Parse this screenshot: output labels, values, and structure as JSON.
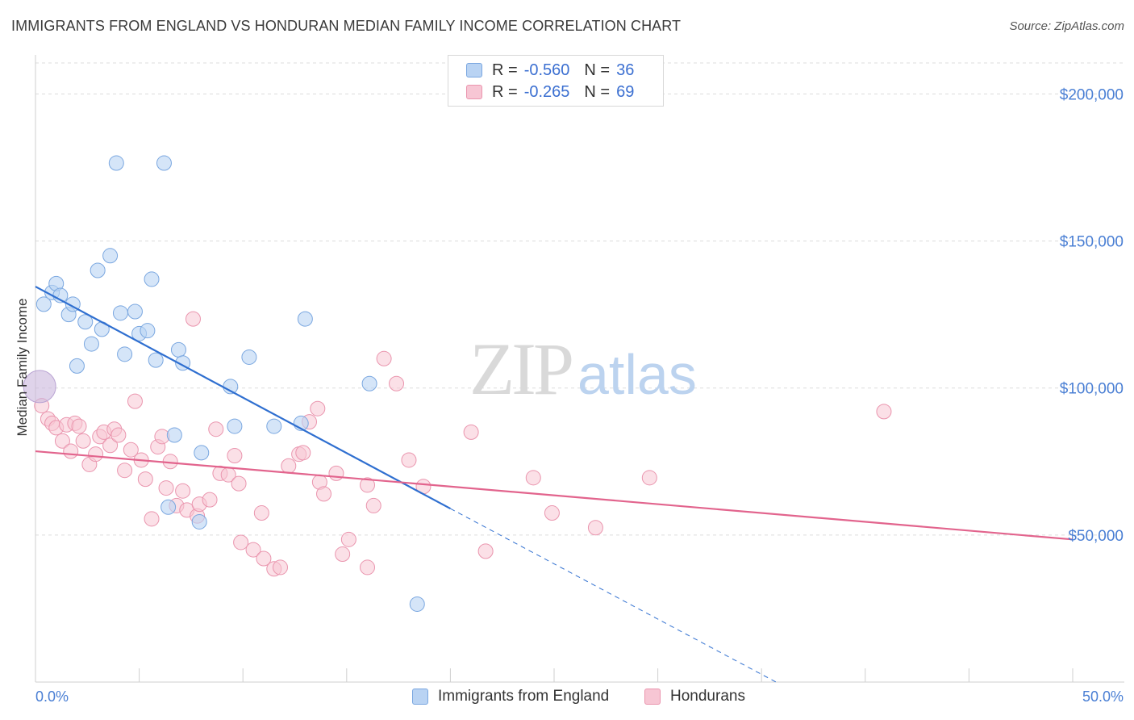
{
  "title": "IMMIGRANTS FROM ENGLAND VS HONDURAN MEDIAN FAMILY INCOME CORRELATION CHART",
  "source": "Source: ZipAtlas.com",
  "watermark": {
    "zip": "ZIP",
    "atlas": "atlas"
  },
  "legend": {
    "r_label": "R =",
    "n_label": "N =",
    "rows": [
      {
        "r": "-0.560",
        "n": "36"
      },
      {
        "r": "-0.265",
        "n": "69"
      }
    ]
  },
  "colors": {
    "blue_fill": "#b9d3f3",
    "blue_stroke": "#7aa7e0",
    "blue_line": "#2f6fd0",
    "pink_fill": "#f7c6d4",
    "pink_stroke": "#ea95ae",
    "pink_line": "#e2648d",
    "tick_text": "#4a7fd4",
    "grid": "#dcdcdc"
  },
  "chart_data": {
    "type": "scatter",
    "xlabel": "",
    "ylabel": "Median Family Income",
    "xlim": [
      0,
      50
    ],
    "ylim": [
      0,
      210000
    ],
    "x_tick_labels": [
      "0.0%",
      "50.0%"
    ],
    "y_ticks": [
      50000,
      100000,
      150000,
      200000
    ],
    "y_tick_labels": [
      "$50,000",
      "$100,000",
      "$150,000",
      "$200,000"
    ],
    "grid": true,
    "legend_position": "top-center",
    "series": [
      {
        "name": "Immigrants from England",
        "color": "#b9d3f3",
        "trend": {
          "x": [
            0,
            20
          ],
          "y": [
            134500,
            59000
          ]
        },
        "trend_dashed": {
          "x": [
            20,
            35.7
          ],
          "y": [
            59000,
            0
          ]
        },
        "points": [
          [
            0.2,
            100500
          ],
          [
            0.4,
            128500
          ],
          [
            0.8,
            132500
          ],
          [
            1.0,
            135500
          ],
          [
            1.2,
            131500
          ],
          [
            1.6,
            125000
          ],
          [
            1.8,
            128500
          ],
          [
            2.0,
            107500
          ],
          [
            2.4,
            122500
          ],
          [
            2.7,
            115000
          ],
          [
            3.0,
            140000
          ],
          [
            3.2,
            120000
          ],
          [
            3.6,
            145000
          ],
          [
            3.9,
            176500
          ],
          [
            4.1,
            125500
          ],
          [
            4.3,
            111500
          ],
          [
            4.8,
            126000
          ],
          [
            5.0,
            118500
          ],
          [
            5.4,
            119500
          ],
          [
            5.6,
            137000
          ],
          [
            5.8,
            109500
          ],
          [
            6.2,
            176500
          ],
          [
            6.4,
            59500
          ],
          [
            6.7,
            84000
          ],
          [
            6.9,
            113000
          ],
          [
            7.1,
            108500
          ],
          [
            7.9,
            54500
          ],
          [
            8.0,
            78000
          ],
          [
            9.4,
            100500
          ],
          [
            9.6,
            87000
          ],
          [
            10.3,
            110500
          ],
          [
            11.5,
            87000
          ],
          [
            12.8,
            88000
          ],
          [
            13.0,
            123500
          ],
          [
            16.1,
            101500
          ],
          [
            18.4,
            26500
          ]
        ]
      },
      {
        "name": "Hondurans",
        "color": "#f7c6d4",
        "trend": {
          "x": [
            0,
            50
          ],
          "y": [
            78500,
            48500
          ]
        },
        "points": [
          [
            0.3,
            94000
          ],
          [
            0.6,
            89500
          ],
          [
            0.8,
            88000
          ],
          [
            1.0,
            86500
          ],
          [
            1.3,
            82000
          ],
          [
            1.5,
            87500
          ],
          [
            1.7,
            78500
          ],
          [
            1.9,
            88000
          ],
          [
            2.1,
            87000
          ],
          [
            2.3,
            82000
          ],
          [
            2.6,
            74000
          ],
          [
            2.9,
            77500
          ],
          [
            3.1,
            83500
          ],
          [
            3.3,
            85000
          ],
          [
            3.6,
            80500
          ],
          [
            3.8,
            86000
          ],
          [
            4.0,
            84000
          ],
          [
            4.3,
            72000
          ],
          [
            4.6,
            79000
          ],
          [
            4.8,
            95500
          ],
          [
            5.1,
            75500
          ],
          [
            5.3,
            69000
          ],
          [
            5.6,
            55500
          ],
          [
            5.9,
            80000
          ],
          [
            6.1,
            83500
          ],
          [
            6.3,
            66000
          ],
          [
            6.5,
            75000
          ],
          [
            6.8,
            60000
          ],
          [
            7.1,
            65000
          ],
          [
            7.3,
            58500
          ],
          [
            7.6,
            123500
          ],
          [
            7.8,
            56500
          ],
          [
            7.9,
            60500
          ],
          [
            8.4,
            62000
          ],
          [
            8.7,
            86000
          ],
          [
            8.9,
            71000
          ],
          [
            9.3,
            70500
          ],
          [
            9.6,
            77000
          ],
          [
            9.8,
            67500
          ],
          [
            9.9,
            47500
          ],
          [
            10.5,
            45000
          ],
          [
            10.9,
            57500
          ],
          [
            11.0,
            42000
          ],
          [
            11.5,
            38500
          ],
          [
            11.8,
            39000
          ],
          [
            12.2,
            73500
          ],
          [
            12.7,
            77500
          ],
          [
            12.9,
            78000
          ],
          [
            13.2,
            88500
          ],
          [
            13.6,
            93000
          ],
          [
            13.7,
            68000
          ],
          [
            13.9,
            64000
          ],
          [
            14.5,
            71000
          ],
          [
            14.8,
            43500
          ],
          [
            15.1,
            48500
          ],
          [
            16.0,
            67000
          ],
          [
            16.3,
            60000
          ],
          [
            16.0,
            39000
          ],
          [
            16.8,
            110000
          ],
          [
            17.4,
            101500
          ],
          [
            18.0,
            75500
          ],
          [
            18.7,
            66500
          ],
          [
            21.0,
            85000
          ],
          [
            21.7,
            44500
          ],
          [
            24.0,
            69500
          ],
          [
            24.9,
            57500
          ],
          [
            27.0,
            52500
          ],
          [
            29.6,
            69500
          ],
          [
            40.9,
            92000
          ]
        ]
      }
    ]
  }
}
